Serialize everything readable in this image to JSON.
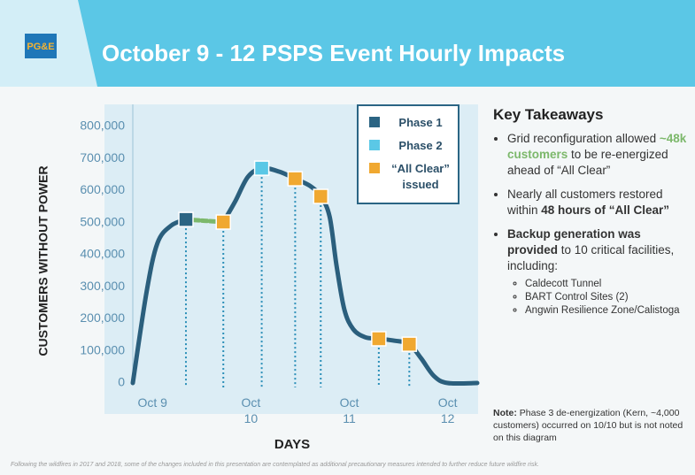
{
  "header": {
    "logo": "PG&E",
    "title": "October 9 - 12 PSPS Event Hourly Impacts"
  },
  "chart_data": {
    "type": "line",
    "y_label": "CUSTOMERS WITHOUT POWER",
    "x_label": "DAYS",
    "xlim": [
      8.8,
      12.3
    ],
    "xticks": [
      {
        "value": 9,
        "label": "Oct 9"
      },
      {
        "value": 10,
        "label": "Oct 10"
      },
      {
        "value": 11,
        "label": "Oct 11"
      },
      {
        "value": 12,
        "label": "Oct 12"
      }
    ],
    "ylim": [
      0,
      800000
    ],
    "yticks": [
      0,
      {
        "value": 100000,
        "label": "100,000"
      },
      {
        "value": 200000,
        "label": "200,000"
      },
      {
        "value": 300000,
        "label": "300,000"
      },
      {
        "value": 400000,
        "label": "400,000"
      },
      {
        "value": 500000,
        "label": "500,000"
      },
      {
        "value": 600000,
        "label": "600,000"
      },
      {
        "value": 700000,
        "label": "700,000"
      },
      {
        "value": 800000,
        "label": "800,000"
      }
    ],
    "lines": [
      {
        "color": "#2b5f7d",
        "x": [
          8.8,
          8.94,
          9.05,
          9.19,
          9.34,
          null,
          9.72,
          9.84,
          9.97,
          10.11,
          10.29,
          10.45,
          10.6,
          10.71,
          10.8,
          10.87,
          10.95,
          11.04,
          11.16,
          11.3,
          11.46,
          11.61,
          11.73,
          11.86,
          12.0,
          12.3
        ],
        "values": [
          0,
          284000,
          436000,
          491000,
          510000,
          null,
          502000,
          566000,
          643000,
          670000,
          659000,
          637000,
          615000,
          582000,
          519000,
          367000,
          229000,
          168000,
          143000,
          138000,
          132000,
          121000,
          77000,
          22000,
          0,
          0
        ]
      },
      {
        "color": "#7cb86b",
        "x": [
          9.34,
          9.72
        ],
        "values": [
          510000,
          502000
        ]
      }
    ],
    "series": [
      {
        "name": "Phase 1",
        "color": "#2b6483",
        "x": [
          9.34
        ],
        "values": [
          510000
        ]
      },
      {
        "name": "Phase 2",
        "color": "#5bc8e6",
        "x": [
          10.11
        ],
        "values": [
          670000
        ]
      },
      {
        "name": "“All Clear” issued",
        "color": "#f0a830",
        "x": [
          9.72,
          10.45,
          10.71,
          11.3,
          11.61
        ],
        "values": [
          502000,
          637000,
          582000,
          138000,
          121000
        ]
      }
    ]
  },
  "takeaways": {
    "title": "Key Takeaways",
    "items": [
      [
        "Grid reconfiguration allowed ",
        "~48k customers",
        " to be re-energized ahead of “All Clear”"
      ],
      [
        "Nearly all customers restored within ",
        "48 hours of “All Clear”"
      ],
      [
        "Backup generation was provided",
        " to 10 critical facilities, including:"
      ]
    ],
    "subitems": [
      "Caldecott Tunnel",
      "BART Control Sites (2)",
      "Angwin Resilience Zone/Calistoga"
    ]
  },
  "note": {
    "label": "Note:",
    "text": " Phase 3 de-energization (Kern, ~4,000 customers) occurred on 10/10 but is not noted on this diagram"
  },
  "footer": "Following the wildfires in 2017 and 2018, some of the changes included in this presentation are contemplated as additional precautionary measures intended to further reduce future wildfire risk."
}
